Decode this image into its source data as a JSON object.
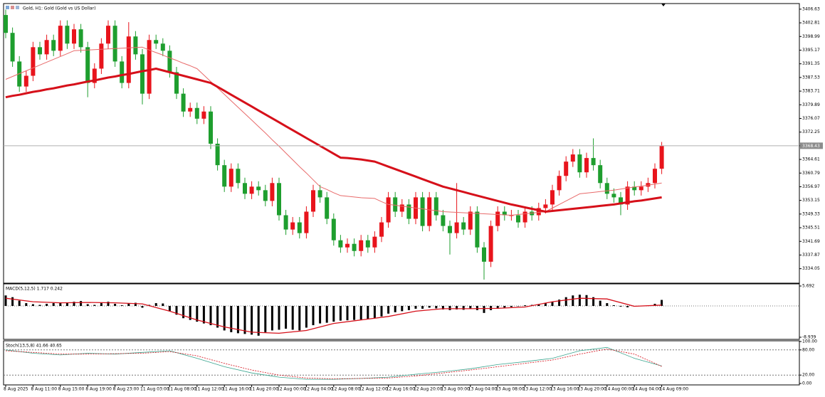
{
  "chart_data": [
    {
      "type": "candlestick",
      "title": "Gold, H1:  Gold (Gold vs US Dollar)",
      "categories": [
        "8 Aug 2025",
        null,
        null,
        null,
        "8 Aug 11:00",
        null,
        null,
        null,
        "8 Aug 15:00",
        null,
        null,
        null,
        "8 Aug 19:00",
        null,
        null,
        null,
        "8 Aug 23:00",
        null,
        null,
        null,
        "11 Aug 03:00",
        null,
        null,
        null,
        "11 Aug 08:00",
        null,
        null,
        null,
        "11 Aug 12:00",
        null,
        null,
        null,
        "11 Aug 16:00",
        null,
        null,
        null,
        "11 Aug 20:00",
        null,
        null,
        null,
        "12 Aug 00:00",
        null,
        null,
        null,
        "12 Aug 04:00",
        null,
        null,
        null,
        "12 Aug 08:00",
        null,
        null,
        null,
        "12 Aug 12:00",
        null,
        null,
        null,
        "12 Aug 16:00",
        null,
        null,
        null,
        "12 Aug 20:00",
        null,
        null,
        null,
        "13 Aug 00:00",
        null,
        null,
        null,
        "13 Aug 04:00",
        null,
        null,
        null,
        "13 Aug 08:00",
        null,
        null,
        null,
        "13 Aug 12:00",
        null,
        null,
        null,
        "13 Aug 16:00",
        null,
        null,
        null,
        "13 Aug 20:00",
        null,
        null,
        null,
        "14 Aug 00:00",
        null,
        null,
        null,
        "14 Aug 04:00",
        null,
        null,
        null,
        "14 Aug 09:00"
      ],
      "open": [
        3405,
        3400,
        3392,
        3385,
        3388,
        3396,
        3394,
        3398,
        3395,
        3402,
        3397,
        3401,
        3396,
        3386,
        3390,
        3397,
        3402,
        3392,
        3386,
        3399,
        3394,
        3383,
        3398,
        3397,
        3395,
        3389,
        3383,
        3378,
        3379,
        3376,
        3378,
        3369,
        3363,
        3357,
        3362,
        3358,
        3355,
        3357,
        3356,
        3353,
        3358,
        3349,
        3345,
        3347,
        3344,
        3350,
        3356,
        3354,
        3348,
        3342,
        3340,
        3341,
        3339,
        3342,
        3340,
        3343,
        3347,
        3354,
        3350,
        3352,
        3348,
        3354,
        3346,
        3354,
        3349,
        3346,
        3344,
        3347,
        3345,
        3350,
        3340,
        3336,
        3346,
        3350,
        3349,
        3349,
        3347,
        3350,
        3349,
        3351,
        3352,
        3356,
        3360,
        3364,
        3366,
        3361,
        3365,
        3363,
        3358,
        3355,
        3354,
        3352,
        3357,
        3356,
        3357,
        3358,
        3362
      ],
      "high": [
        3406.5,
        3401.5,
        3393.5,
        3389.5,
        3397.5,
        3397.5,
        3399.5,
        3399.5,
        3403.5,
        3403.5,
        3402.5,
        3402.5,
        3397.5,
        3391.5,
        3398.5,
        3403.5,
        3403.5,
        3393.5,
        3403,
        3400.5,
        3395.5,
        3399.5,
        3399.5,
        3398.5,
        3396.5,
        3390.5,
        3384.5,
        3380.5,
        3380.5,
        3379.5,
        3379.5,
        3370.5,
        3364.5,
        3363.5,
        3363.5,
        3359.5,
        3358.5,
        3358.5,
        3357.5,
        3359.5,
        3359.5,
        3350.5,
        3348.5,
        3348.5,
        3351.5,
        3357.5,
        3357.5,
        3355.5,
        3349.5,
        3343.5,
        3342.5,
        3342.5,
        3343.5,
        3343.5,
        3344.5,
        3348.5,
        3355.5,
        3355.5,
        3353.5,
        3353.5,
        3355.5,
        3355.5,
        3355.5,
        3355.5,
        3350.5,
        3347.5,
        3358,
        3348.5,
        3351.5,
        3351.5,
        3341.5,
        3347.5,
        3351.5,
        3351.5,
        3350.5,
        3350.5,
        3351.5,
        3351.5,
        3352.5,
        3353.5,
        3357.5,
        3361.5,
        3365.5,
        3367.5,
        3367.5,
        3366.5,
        3370.5,
        3364.5,
        3359.5,
        3356.5,
        3355.5,
        3358.5,
        3358.5,
        3358.5,
        3359.5,
        3363.5,
        3369.5
      ],
      "low": [
        3398.5,
        3390.5,
        3383.5,
        3383.5,
        3386.5,
        3392.5,
        3392.5,
        3393.5,
        3393.5,
        3395.5,
        3395.5,
        3394.5,
        3382,
        3384.5,
        3388.5,
        3395.5,
        3390.5,
        3384.5,
        3384.5,
        3392.5,
        3380,
        3381.5,
        3395.5,
        3393.5,
        3387.5,
        3381.5,
        3376.5,
        3376.5,
        3374.5,
        3374.5,
        3367.5,
        3361.5,
        3355.5,
        3355.5,
        3356.5,
        3353.5,
        3353.5,
        3354.5,
        3351.5,
        3351.5,
        3347.5,
        3343.5,
        3343.5,
        3342.5,
        3342.5,
        3348.5,
        3352.5,
        3346.5,
        3340.5,
        3338.5,
        3338.5,
        3337.5,
        3337.5,
        3338.5,
        3338.5,
        3341.5,
        3345.5,
        3348.5,
        3348.5,
        3346.5,
        3346.5,
        3344.5,
        3344.5,
        3347.5,
        3344.5,
        3338,
        3342.5,
        3343.5,
        3343.5,
        3338.5,
        3331,
        3334.5,
        3344.5,
        3347.5,
        3347.5,
        3345.5,
        3345.5,
        3347.5,
        3347.5,
        3349.5,
        3350.5,
        3354.5,
        3358.5,
        3362.5,
        3359.5,
        3359.5,
        3361.5,
        3356.5,
        3353.5,
        3352.5,
        3349,
        3350.5,
        3354.5,
        3354.5,
        3355.5,
        3356.5,
        3360.5
      ],
      "close": [
        3400,
        3392,
        3385,
        3388,
        3396,
        3394,
        3398,
        3395,
        3402,
        3397,
        3401,
        3396,
        3386,
        3390,
        3397,
        3402,
        3392,
        3386,
        3399,
        3394,
        3383,
        3398,
        3397,
        3395,
        3389,
        3383,
        3378,
        3379,
        3376,
        3378,
        3369,
        3363,
        3357,
        3362,
        3358,
        3355,
        3357,
        3356,
        3353,
        3358,
        3349,
        3345,
        3347,
        3344,
        3350,
        3356,
        3354,
        3348,
        3342,
        3340,
        3341,
        3339,
        3342,
        3340,
        3343,
        3347,
        3354,
        3350,
        3352,
        3348,
        3354,
        3346,
        3354,
        3349,
        3346,
        3344,
        3347,
        3345,
        3350,
        3340,
        3336,
        3346,
        3350,
        3349,
        3349,
        3347,
        3350,
        3349,
        3351,
        3352,
        3356,
        3360,
        3364,
        3366,
        3361,
        3365,
        3363,
        3358,
        3355,
        3354,
        3352,
        3357,
        3356,
        3357,
        3358,
        3362,
        3368.43
      ],
      "up_color": "#e8141c",
      "down_color": "#1e9e2e",
      "lines": [
        {
          "color": "#e86a6a",
          "width": 1,
          "values": [
            3387,
            3387.8,
            3388.6,
            3389.4,
            3390.2,
            3391,
            3391.8,
            3392.6,
            3393.4,
            3394.2,
            3395,
            3395.1,
            3395.2,
            3395.3,
            3395.4,
            3395.5,
            3395.6,
            3395.7,
            3395.8,
            3395.9,
            3396,
            3395.2,
            3394.5,
            3393.8,
            3393,
            3392.3,
            3391.5,
            3390.8,
            3390,
            3388.2,
            3386.4,
            3384.6,
            3382.8,
            3381,
            3379.2,
            3377.4,
            3375.6,
            3373.8,
            3372,
            3370.1,
            3368.3,
            3366.4,
            3364.5,
            3362.6,
            3360.8,
            3358.9,
            3357,
            3356.2,
            3355.3,
            3354.5,
            3354.3,
            3354.1,
            3353.9,
            3353.8,
            3353.7,
            3352.8,
            3352,
            3351.8,
            3351.5,
            3351.3,
            3351,
            3350.8,
            3350.5,
            3350.3,
            3350,
            3349.9,
            3349.8,
            3349.7,
            3349.6,
            3349.5,
            3349.4,
            3349.3,
            3349.2,
            3349.1,
            3349,
            3349.2,
            3349.4,
            3349.6,
            3349.8,
            3350,
            3351,
            3352,
            3353,
            3354,
            3355,
            3355.2,
            3355.4,
            3355.6,
            3355.8,
            3356,
            3356.3,
            3356.6,
            3356.9,
            3357.1,
            3357.4,
            3357.7,
            3358
          ]
        },
        {
          "color": "#d6101a",
          "width": 3,
          "values": [
            3382,
            3382.4,
            3382.7,
            3383.1,
            3383.5,
            3383.8,
            3384.2,
            3384.5,
            3384.9,
            3385.3,
            3385.6,
            3386,
            3386.4,
            3386.7,
            3387.1,
            3387.5,
            3387.8,
            3388.2,
            3388.5,
            3388.9,
            3389.3,
            3389.6,
            3390,
            3389.5,
            3389,
            3388.5,
            3388,
            3387.5,
            3387,
            3386.5,
            3386,
            3384.9,
            3383.8,
            3382.7,
            3381.6,
            3380.5,
            3379.4,
            3378.3,
            3377.2,
            3376.1,
            3375,
            3373.9,
            3372.8,
            3371.7,
            3370.6,
            3369.5,
            3368.4,
            3367.3,
            3366.2,
            3365.1,
            3365,
            3364.8,
            3364.6,
            3364.3,
            3364,
            3363.3,
            3362.6,
            3361.9,
            3361.2,
            3360.5,
            3359.8,
            3359.1,
            3358.4,
            3357.7,
            3357,
            3356.5,
            3356,
            3355.5,
            3355,
            3354.5,
            3354,
            3353.5,
            3353,
            3352.5,
            3352,
            3351.6,
            3351.2,
            3350.8,
            3350.4,
            3350,
            3350.2,
            3350.4,
            3350.6,
            3350.8,
            3351,
            3351.2,
            3351.4,
            3351.6,
            3351.8,
            3352,
            3352.3,
            3352.6,
            3352.9,
            3353.1,
            3353.4,
            3353.7,
            3354
          ]
        }
      ],
      "price_line": 3368.43,
      "ylim": [
        3330,
        3408.2
      ],
      "yticks": [
        3406.63,
        3402.81,
        3398.99,
        3395.17,
        3391.35,
        3387.53,
        3383.71,
        3379.89,
        3376.07,
        3372.25,
        3368.43,
        3364.61,
        3360.79,
        3356.97,
        3353.15,
        3349.33,
        3345.51,
        3341.69,
        3337.87,
        3334.05
      ]
    },
    {
      "type": "macd",
      "title": "MACD(5,12,5) 1.717 0.242",
      "values": [
        3,
        2.5,
        1.5,
        0.8,
        0.5,
        0.3,
        0.6,
        0.8,
        1,
        0.9,
        1.2,
        1.4,
        0.5,
        0.3,
        0.8,
        1.2,
        0.6,
        0.2,
        0.8,
        0.9,
        -0.5,
        0.3,
        0.8,
        0.7,
        -1.5,
        -2.5,
        -3.5,
        -4,
        -4.5,
        -5,
        -5.5,
        -6.2,
        -7,
        -7.5,
        -7.8,
        -8,
        -8.2,
        -8.5,
        -7.5,
        -7,
        -6.8,
        -6.5,
        -6.8,
        -7,
        -6.2,
        -5.5,
        -5,
        -4.8,
        -4.5,
        -4.2,
        -4.1,
        -4,
        -3.9,
        -3.7,
        -3.5,
        -3,
        -2.2,
        -1.8,
        -1.5,
        -1.2,
        -0.8,
        -0.8,
        -0.5,
        -0.7,
        -1,
        -1.2,
        -1,
        -1.1,
        -0.8,
        -1.2,
        -2,
        -1.2,
        -0.8,
        -0.5,
        -0.3,
        -0.1,
        0.2,
        0.3,
        0.5,
        0.8,
        1.2,
        1.8,
        2.5,
        3,
        3.2,
        3.1,
        2.5,
        1.5,
        0.8,
        0.2,
        -0.2,
        -0.4,
        -0.2,
        -0.1,
        0.1,
        0.6,
        1.717
      ],
      "color": "#000000",
      "signal": {
        "color": "#d6101a",
        "x": [
          0,
          4,
          8,
          12,
          16,
          20,
          24,
          28,
          32,
          36,
          40,
          44,
          48,
          52,
          56,
          60,
          64,
          68,
          72,
          76,
          80,
          84,
          88,
          92,
          96
        ],
        "values": [
          2.2,
          1.2,
          0.9,
          1.0,
          0.9,
          0.6,
          -1.5,
          -4,
          -6,
          -7.5,
          -7.8,
          -7,
          -5,
          -4,
          -3,
          -1.5,
          -0.8,
          -0.8,
          -0.7,
          -0.3,
          1.2,
          2.2,
          2.0,
          -0.1,
          0.242
        ]
      },
      "ylim": [
        -9.55,
        6.3
      ],
      "yticks": [
        5.692,
        -8.939
      ]
    },
    {
      "type": "stochastic",
      "title": "Stoch(13,5,8) 41.66 40.65",
      "series": [
        {
          "color": "#3aa58f",
          "dash": false,
          "x": [
            0,
            4,
            8,
            12,
            16,
            20,
            24,
            28,
            32,
            36,
            40,
            44,
            48,
            52,
            56,
            60,
            64,
            68,
            72,
            76,
            80,
            84,
            88,
            92,
            96
          ],
          "values": [
            80,
            72,
            68,
            72,
            70,
            74,
            78,
            60,
            40,
            25,
            15,
            10,
            10,
            12,
            15,
            22,
            28,
            35,
            45,
            52,
            60,
            78,
            86,
            60,
            41.66
          ]
        },
        {
          "color": "#d6101a",
          "dash": true,
          "x": [
            0,
            4,
            8,
            12,
            16,
            20,
            24,
            28,
            32,
            36,
            40,
            44,
            48,
            52,
            56,
            60,
            64,
            68,
            72,
            76,
            80,
            84,
            88,
            92,
            96
          ],
          "values": [
            78,
            74,
            70,
            70,
            71,
            72,
            76,
            66,
            48,
            32,
            20,
            13,
            11,
            12,
            13,
            18,
            25,
            32,
            40,
            48,
            56,
            70,
            82,
            70,
            40.65
          ]
        }
      ],
      "levels": [
        80,
        20
      ],
      "ylim": [
        -3.4,
        101.7
      ],
      "yticks": [
        {
          "value": 100,
          "label": "100.00"
        },
        {
          "value": 80,
          "label": "80.00"
        },
        {
          "value": 20,
          "label": "20.00"
        },
        {
          "value": 0,
          "label": "0.00"
        }
      ]
    }
  ]
}
